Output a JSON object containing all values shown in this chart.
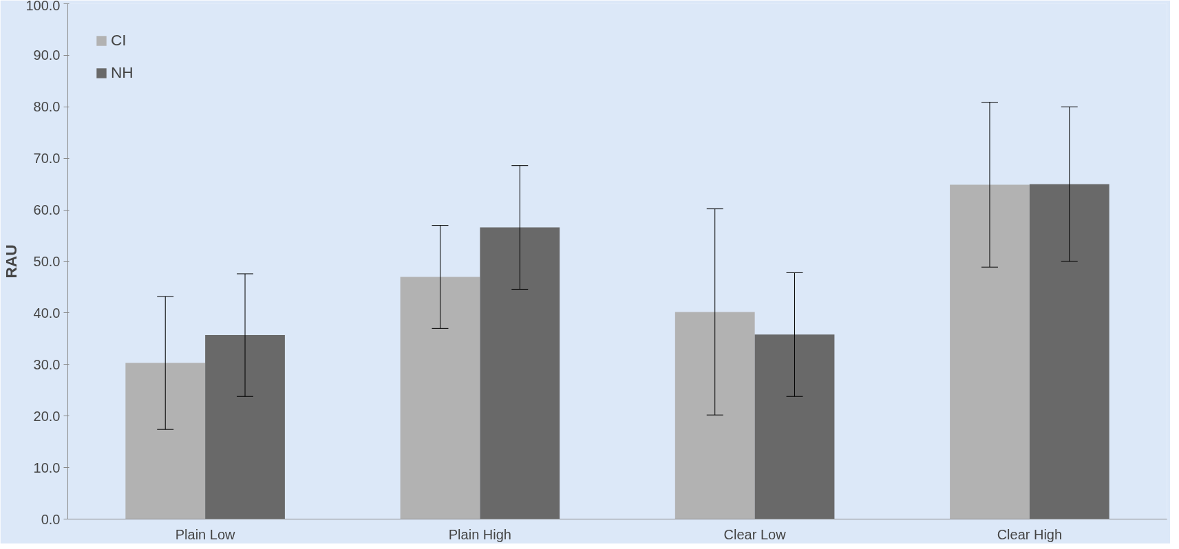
{
  "chart_data": {
    "type": "bar",
    "ylabel": "RAU",
    "categories": [
      "Plain Low",
      "Plain High",
      "Clear Low",
      "Clear High"
    ],
    "series": [
      {
        "name": "CI",
        "color": "#b2b2b2",
        "values": [
          30.3,
          47.0,
          40.2,
          64.9
        ],
        "errors": [
          12.9,
          10.0,
          20.0,
          16.0
        ]
      },
      {
        "name": "NH",
        "color": "#696969",
        "values": [
          35.7,
          56.6,
          35.8,
          65.0
        ],
        "errors": [
          11.9,
          12.0,
          12.0,
          15.0
        ]
      }
    ],
    "ylim": [
      0,
      100
    ],
    "yticks": [
      {
        "value": 0,
        "label": "0.0"
      },
      {
        "value": 10,
        "label": "10.0"
      },
      {
        "value": 20,
        "label": "20.0"
      },
      {
        "value": 30,
        "label": "30.0"
      },
      {
        "value": 40,
        "label": "40.0"
      },
      {
        "value": 50,
        "label": "50.0"
      },
      {
        "value": 60,
        "label": "60.0"
      },
      {
        "value": 70,
        "label": "70.0"
      },
      {
        "value": 80,
        "label": "80.0"
      },
      {
        "value": 90,
        "label": "90.0"
      },
      {
        "value": 100,
        "label": "100.0"
      }
    ],
    "legend": "top left"
  }
}
